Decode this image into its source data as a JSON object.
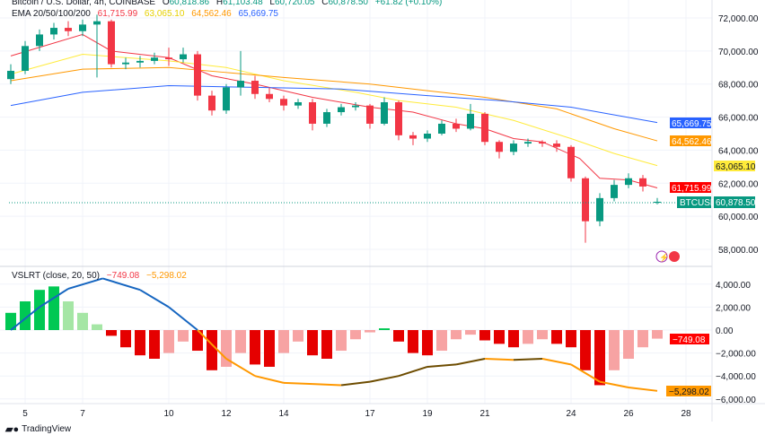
{
  "header": {
    "symbol_line": "Bitcoin / U.S. Dollar, 4h, COINBASE",
    "open_label": "O",
    "open": "60,818.86",
    "high_label": "H",
    "high": "61,103.48",
    "low_label": "L",
    "low": "60,720.05",
    "close_label": "C",
    "close": "60,878.50",
    "change": "+61.82 (+0.10%)",
    "ema_label": "EMA 20/50/100/200",
    "ema20": "61,715.99",
    "ema50": "63,065.10",
    "ema100": "64,562.46",
    "ema200": "65,669.75"
  },
  "indicator": {
    "label": "VSLRT (close, 20, 50)",
    "value1": "−749.08",
    "value2": "−5,298.02"
  },
  "price_axis": [
    "72,000.00",
    "70,000.00",
    "68,000.00",
    "66,000.00",
    "64,000.00",
    "62,000.00",
    "60,000.00",
    "58,000.00"
  ],
  "indicator_axis": [
    "4,000.00",
    "2,000.00",
    "0.00",
    "−2,000.00",
    "−4,000.00",
    "−6,000.00"
  ],
  "time_axis": [
    "5",
    "7",
    "10",
    "12",
    "14",
    "17",
    "19",
    "21",
    "24",
    "26",
    "28"
  ],
  "price_tags": {
    "ema200": "65,669.75",
    "ema100": "64,562.46",
    "ema50": "63,065.10",
    "ema20": "61,715.99",
    "symbol": "BTCUSD",
    "last": "60,878.50",
    "vslrt1": "−749.08",
    "vslrt2": "−5,298.02"
  },
  "colors": {
    "up": "#089981",
    "down": "#f23645",
    "ema20": "#f23645",
    "ema50": "#ffeb3b",
    "ema100": "#ff9800",
    "ema200": "#2962ff",
    "last": "#089981"
  },
  "branding": "TradingView",
  "chart_data": [
    {
      "type": "candlestick",
      "title": "Bitcoin / U.S. Dollar, 4h, COINBASE",
      "x_unit": "day of month",
      "ylim": [
        57000,
        73000
      ],
      "grid": true,
      "candles_day": [
        4.5,
        5,
        5.5,
        6,
        6.5,
        7,
        7.5,
        8,
        8.5,
        9,
        9.5,
        10,
        10.5,
        11,
        11.5,
        12,
        12.5,
        13,
        13.5,
        14,
        14.5,
        15,
        15.5,
        16,
        16.5,
        17,
        17.5,
        18,
        18.5,
        19,
        19.5,
        20,
        20.5,
        21,
        21.5,
        22,
        22.5,
        23,
        23.5,
        24,
        24.5,
        25,
        25.5,
        26,
        26.5,
        27
      ],
      "ohlc": [
        [
          68300,
          69200,
          68000,
          68800
        ],
        [
          68800,
          70600,
          68600,
          70300
        ],
        [
          70300,
          71300,
          70000,
          71000
        ],
        [
          71000,
          71700,
          70700,
          71400
        ],
        [
          71400,
          71800,
          70900,
          71200
        ],
        [
          71200,
          71900,
          70900,
          71600
        ],
        [
          71600,
          72200,
          68400,
          71800
        ],
        [
          71800,
          71900,
          69000,
          69200
        ],
        [
          69200,
          69600,
          68900,
          69300
        ],
        [
          69300,
          69700,
          69000,
          69400
        ],
        [
          69400,
          69900,
          69200,
          69600
        ],
        [
          69600,
          70200,
          69100,
          69500
        ],
        [
          69500,
          70200,
          69300,
          69800
        ],
        [
          69800,
          70000,
          67000,
          67300
        ],
        [
          67300,
          67600,
          66100,
          66400
        ],
        [
          66400,
          68000,
          66200,
          67800
        ],
        [
          67800,
          70000,
          67300,
          68200
        ],
        [
          68200,
          68500,
          67100,
          67400
        ],
        [
          67400,
          67800,
          66900,
          67100
        ],
        [
          67100,
          67300,
          66400,
          66700
        ],
        [
          66700,
          67100,
          66500,
          66900
        ],
        [
          66900,
          67100,
          65200,
          65600
        ],
        [
          65600,
          66500,
          65400,
          66300
        ],
        [
          66300,
          66800,
          66100,
          66600
        ],
        [
          66600,
          66900,
          66400,
          66700
        ],
        [
          66700,
          66800,
          65300,
          65600
        ],
        [
          65600,
          67200,
          65500,
          66900
        ],
        [
          66900,
          67000,
          64600,
          64900
        ],
        [
          64900,
          65100,
          64300,
          64700
        ],
        [
          64700,
          65200,
          64500,
          65000
        ],
        [
          65000,
          65800,
          64900,
          65600
        ],
        [
          65600,
          65900,
          65100,
          65300
        ],
        [
          65300,
          66800,
          65200,
          66200
        ],
        [
          66200,
          66300,
          64300,
          64500
        ],
        [
          64500,
          64600,
          63500,
          63900
        ],
        [
          63900,
          64600,
          63700,
          64400
        ],
        [
          64400,
          64700,
          64200,
          64500
        ],
        [
          64500,
          64600,
          64200,
          64400
        ],
        [
          64400,
          64600,
          63900,
          64200
        ],
        [
          64200,
          64300,
          62100,
          62300
        ],
        [
          62300,
          62400,
          58400,
          59700
        ],
        [
          59700,
          61400,
          59400,
          61100
        ],
        [
          61100,
          62200,
          60900,
          61900
        ],
        [
          61900,
          62600,
          61700,
          62300
        ],
        [
          62300,
          62500,
          61500,
          61800
        ],
        [
          60818.86,
          61103.48,
          60720.05,
          60878.5
        ]
      ],
      "series": [
        {
          "name": "EMA 20",
          "points": [
            [
              4.5,
              69700
            ],
            [
              7,
              71000
            ],
            [
              8,
              70000
            ],
            [
              10,
              69600
            ],
            [
              11.5,
              68500
            ],
            [
              13,
              68000
            ],
            [
              15,
              67200
            ],
            [
              17,
              66600
            ],
            [
              18.5,
              66300
            ],
            [
              20,
              65600
            ],
            [
              21,
              65300
            ],
            [
              22,
              64700
            ],
            [
              23,
              64500
            ],
            [
              24.3,
              63500
            ],
            [
              25,
              62300
            ],
            [
              26,
              62200
            ],
            [
              27,
              61715.99
            ]
          ]
        },
        {
          "name": "EMA 50",
          "points": [
            [
              4.5,
              68600
            ],
            [
              7,
              69800
            ],
            [
              10,
              69400
            ],
            [
              12,
              69000
            ],
            [
              14,
              68200
            ],
            [
              16.5,
              67500
            ],
            [
              18,
              67000
            ],
            [
              20,
              66600
            ],
            [
              22,
              65800
            ],
            [
              24,
              64700
            ],
            [
              25.5,
              63800
            ],
            [
              27,
              63065.1
            ]
          ]
        },
        {
          "name": "EMA 100",
          "points": [
            [
              4.5,
              68200
            ],
            [
              7,
              68900
            ],
            [
              10,
              69000
            ],
            [
              12,
              68700
            ],
            [
              14,
              68400
            ],
            [
              17,
              68000
            ],
            [
              19,
              67600
            ],
            [
              21,
              67200
            ],
            [
              23.5,
              66500
            ],
            [
              25.5,
              65300
            ],
            [
              27,
              64562.46
            ]
          ]
        },
        {
          "name": "EMA 200",
          "points": [
            [
              4.5,
              66700
            ],
            [
              7,
              67500
            ],
            [
              10,
              67900
            ],
            [
              13,
              67800
            ],
            [
              16,
              67700
            ],
            [
              19,
              67300
            ],
            [
              21.5,
              67000
            ],
            [
              24,
              66600
            ],
            [
              27,
              65669.75
            ]
          ]
        }
      ]
    },
    {
      "type": "bar+line",
      "title": "VSLRT (close, 20, 50)",
      "ylim": [
        -6000,
        5000
      ],
      "histogram_day": [
        4.5,
        5,
        5.5,
        6,
        6.5,
        7,
        7.5,
        8,
        8.5,
        9,
        9.5,
        10,
        10.5,
        11,
        11.5,
        12,
        12.5,
        13,
        13.5,
        14,
        14.5,
        15,
        15.5,
        16,
        16.5,
        17,
        17.5,
        18,
        18.5,
        19,
        19.5,
        20,
        20.5,
        21,
        21.5,
        22,
        22.5,
        23,
        23.5,
        24,
        24.5,
        25,
        25.5,
        26,
        26.5,
        27
      ],
      "histogram": [
        1500,
        2500,
        3500,
        3800,
        2500,
        1500,
        500,
        -500,
        -1500,
        -2200,
        -2500,
        -2000,
        -1000,
        -1800,
        -3500,
        -3200,
        -2000,
        -3000,
        -3200,
        -2000,
        -1000,
        -2200,
        -2500,
        -1800,
        -800,
        -200,
        150,
        -1000,
        -2000,
        -2200,
        -1800,
        -800,
        -400,
        -900,
        -1200,
        -1500,
        -1200,
        -800,
        -1200,
        -1500,
        -3500,
        -4800,
        -3500,
        -2500,
        -1500,
        -749.08
      ],
      "line": [
        [
          4.5,
          0
        ],
        [
          5.5,
          2000
        ],
        [
          6.5,
          3600
        ],
        [
          7.7,
          4500
        ],
        [
          9,
          3500
        ],
        [
          10,
          2000
        ],
        [
          11,
          0
        ],
        [
          12,
          -2500
        ],
        [
          13,
          -4000
        ],
        [
          14,
          -4600
        ],
        [
          15,
          -4700
        ],
        [
          16,
          -4800
        ],
        [
          17,
          -4500
        ],
        [
          18,
          -4000
        ],
        [
          19,
          -3200
        ],
        [
          20,
          -3000
        ],
        [
          21,
          -2500
        ],
        [
          22,
          -2600
        ],
        [
          23,
          -2500
        ],
        [
          24,
          -3000
        ],
        [
          25,
          -4500
        ],
        [
          26,
          -5000
        ],
        [
          27,
          -5298.02
        ]
      ]
    }
  ]
}
